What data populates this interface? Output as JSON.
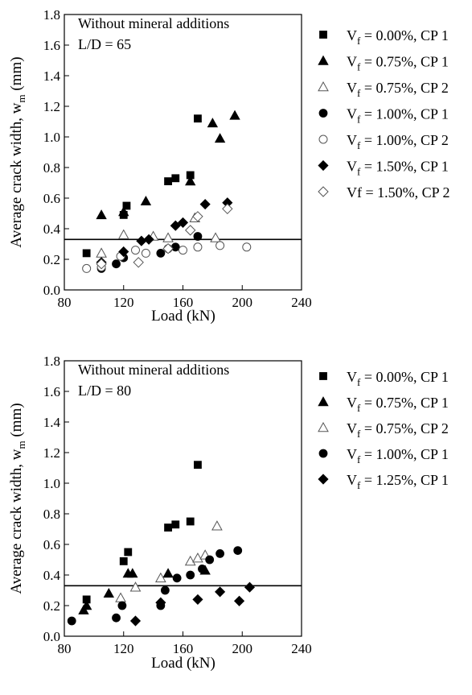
{
  "chart_data": [
    {
      "type": "scatter",
      "annotation": {
        "line1": "Without mineral additions",
        "line2": "L/D = 65"
      },
      "xlabel": "Load (kN)",
      "ylabel_main": "Average crack width, w",
      "ylabel_sub": "m",
      "ylabel_unit": " (mm)",
      "xlim": [
        80,
        240
      ],
      "ylim": [
        0,
        1.8
      ],
      "xticks": [
        "80",
        "120",
        "160",
        "200",
        "240"
      ],
      "yticks": [
        "0.0",
        "0.2",
        "0.4",
        "0.6",
        "0.8",
        "1.0",
        "1.2",
        "1.4",
        "1.6",
        "1.8"
      ],
      "xtick_values": [
        80,
        120,
        160,
        200,
        240
      ],
      "ytick_values": [
        0,
        0.2,
        0.4,
        0.6,
        0.8,
        1.0,
        1.2,
        1.4,
        1.6,
        1.8
      ],
      "limit_line": 0.33,
      "legend_position": "right",
      "series": [
        {
          "name_pre": "V",
          "name_sub": "f",
          "name_post": " = 0.00%, CP 1",
          "marker": "square",
          "filled": true,
          "points": [
            [
              95,
              0.24
            ],
            [
              120,
              0.49
            ],
            [
              122,
              0.55
            ],
            [
              150,
              0.71
            ],
            [
              155,
              0.73
            ],
            [
              165,
              0.75
            ],
            [
              170,
              1.12
            ]
          ]
        },
        {
          "name_pre": "V",
          "name_sub": "f",
          "name_post": " = 0.75%, CP 1",
          "marker": "triangle",
          "filled": true,
          "points": [
            [
              105,
              0.49
            ],
            [
              120,
              0.51
            ],
            [
              135,
              0.58
            ],
            [
              165,
              0.71
            ],
            [
              180,
              1.09
            ],
            [
              185,
              0.99
            ],
            [
              195,
              1.14
            ]
          ]
        },
        {
          "name_pre": "V",
          "name_sub": "f",
          "name_post": " = 0.75%, CP 2",
          "marker": "triangle",
          "filled": false,
          "points": [
            [
              105,
              0.24
            ],
            [
              120,
              0.36
            ],
            [
              140,
              0.35
            ],
            [
              150,
              0.34
            ],
            [
              168,
              0.47
            ],
            [
              182,
              0.34
            ]
          ]
        },
        {
          "name_pre": "V",
          "name_sub": "f",
          "name_post": " = 1.00%, CP 1",
          "marker": "circle",
          "filled": true,
          "points": [
            [
              105,
              0.14
            ],
            [
              115,
              0.17
            ],
            [
              120,
              0.21
            ],
            [
              145,
              0.24
            ],
            [
              155,
              0.28
            ],
            [
              170,
              0.35
            ]
          ]
        },
        {
          "name_pre": "V",
          "name_sub": "f",
          "name_post": " = 1.00%, CP 2",
          "marker": "circle",
          "filled": false,
          "points": [
            [
              95,
              0.14
            ],
            [
              105,
              0.15
            ],
            [
              118,
              0.22
            ],
            [
              128,
              0.26
            ],
            [
              135,
              0.24
            ],
            [
              150,
              0.27
            ],
            [
              160,
              0.26
            ],
            [
              170,
              0.28
            ],
            [
              185,
              0.29
            ],
            [
              203,
              0.28
            ]
          ]
        },
        {
          "name_pre": "V",
          "name_sub": "f",
          "name_post": " = 1.50%, CP 1",
          "marker": "diamond",
          "filled": true,
          "points": [
            [
              105,
              0.18
            ],
            [
              120,
              0.25
            ],
            [
              132,
              0.32
            ],
            [
              137,
              0.33
            ],
            [
              155,
              0.42
            ],
            [
              160,
              0.44
            ],
            [
              175,
              0.56
            ],
            [
              190,
              0.57
            ]
          ]
        },
        {
          "name_pre": "Vf",
          "name_sub": "",
          "name_post": " = 1.50%, CP 2",
          "marker": "diamond",
          "filled": false,
          "points": [
            [
              105,
              0.17
            ],
            [
              130,
              0.18
            ],
            [
              150,
              0.27
            ],
            [
              165,
              0.39
            ],
            [
              170,
              0.48
            ],
            [
              190,
              0.53
            ]
          ]
        }
      ]
    },
    {
      "type": "scatter",
      "annotation": {
        "line1": "Without mineral additions",
        "line2": "L/D = 80"
      },
      "xlabel": "Load (kN)",
      "ylabel_main": "Average crack width, w",
      "ylabel_sub": "m",
      "ylabel_unit": " (mm)",
      "xlim": [
        80,
        240
      ],
      "ylim": [
        0,
        1.8
      ],
      "xticks": [
        "80",
        "120",
        "160",
        "200",
        "240"
      ],
      "yticks": [
        "0.0",
        "0.2",
        "0.4",
        "0.6",
        "0.8",
        "1.0",
        "1.2",
        "1.4",
        "1.6",
        "1.8"
      ],
      "xtick_values": [
        80,
        120,
        160,
        200,
        240
      ],
      "ytick_values": [
        0,
        0.2,
        0.4,
        0.6,
        0.8,
        1.0,
        1.2,
        1.4,
        1.6,
        1.8
      ],
      "limit_line": 0.33,
      "legend_position": "right",
      "series": [
        {
          "name_pre": "V",
          "name_sub": "f",
          "name_post": " = 0.00%, CP 1",
          "marker": "square",
          "filled": true,
          "points": [
            [
              95,
              0.24
            ],
            [
              120,
              0.49
            ],
            [
              123,
              0.55
            ],
            [
              150,
              0.71
            ],
            [
              155,
              0.73
            ],
            [
              165,
              0.75
            ],
            [
              170,
              1.12
            ]
          ]
        },
        {
          "name_pre": "V",
          "name_sub": "f",
          "name_post": " = 0.75%, CP 1",
          "marker": "triangle",
          "filled": true,
          "points": [
            [
              93,
              0.17
            ],
            [
              95,
              0.2
            ],
            [
              110,
              0.28
            ],
            [
              123,
              0.41
            ],
            [
              126,
              0.41
            ],
            [
              150,
              0.41
            ],
            [
              175,
              0.43
            ]
          ]
        },
        {
          "name_pre": "V",
          "name_sub": "f",
          "name_post": " = 0.75%, CP 2",
          "marker": "triangle",
          "filled": false,
          "points": [
            [
              118,
              0.25
            ],
            [
              128,
              0.32
            ],
            [
              145,
              0.38
            ],
            [
              165,
              0.49
            ],
            [
              170,
              0.51
            ],
            [
              175,
              0.53
            ],
            [
              183,
              0.72
            ]
          ]
        },
        {
          "name_pre": "V",
          "name_sub": "f",
          "name_post": " = 1.00%, CP 1",
          "marker": "circle",
          "filled": true,
          "points": [
            [
              85,
              0.1
            ],
            [
              115,
              0.12
            ],
            [
              119,
              0.2
            ],
            [
              145,
              0.2
            ],
            [
              148,
              0.3
            ],
            [
              156,
              0.38
            ],
            [
              165,
              0.4
            ],
            [
              173,
              0.44
            ],
            [
              178,
              0.5
            ],
            [
              185,
              0.54
            ],
            [
              197,
              0.56
            ]
          ]
        },
        {
          "name_pre": "V",
          "name_sub": "f",
          "name_post": " = 1.25%, CP 1",
          "marker": "diamond",
          "filled": true,
          "points": [
            [
              128,
              0.1
            ],
            [
              145,
              0.22
            ],
            [
              170,
              0.24
            ],
            [
              185,
              0.29
            ],
            [
              198,
              0.23
            ],
            [
              205,
              0.32
            ]
          ]
        }
      ]
    }
  ]
}
